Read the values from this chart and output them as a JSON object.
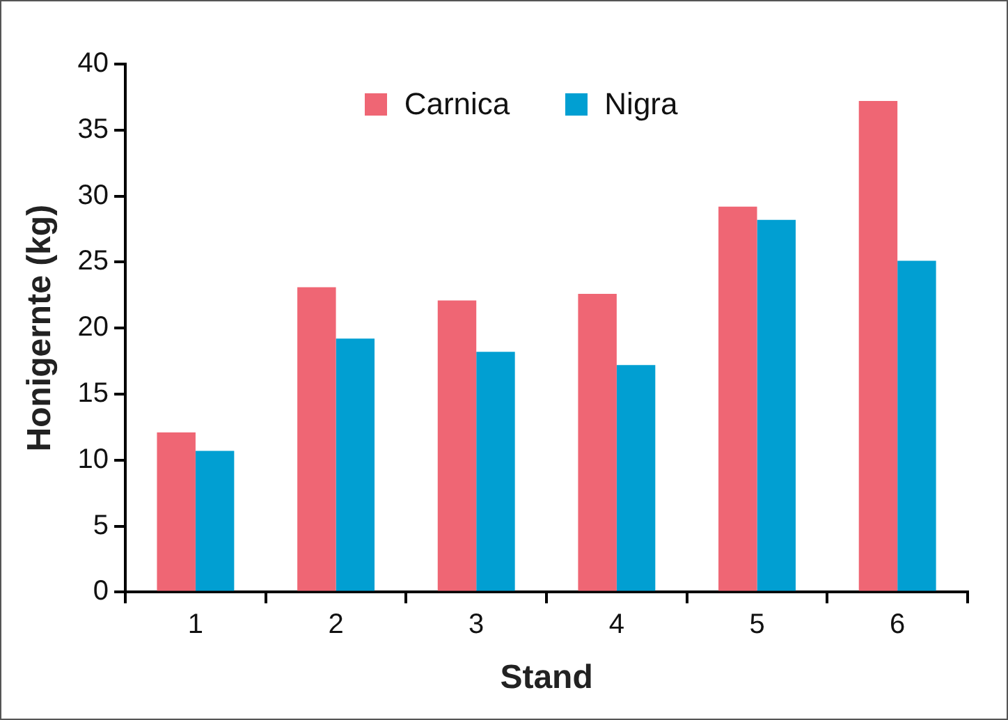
{
  "chart_data": {
    "type": "bar",
    "xlabel": "Stand",
    "ylabel": "Honigernte (kg)",
    "categories": [
      "1",
      "2",
      "3",
      "4",
      "5",
      "6"
    ],
    "series": [
      {
        "name": "Carnica",
        "color": "#ef6674",
        "values": [
          12.1,
          23.1,
          22.1,
          22.6,
          29.2,
          37.2
        ]
      },
      {
        "name": "Nigra",
        "color": "#019fd2",
        "values": [
          10.7,
          19.2,
          18.2,
          17.2,
          28.2,
          25.1
        ]
      }
    ],
    "ylim": [
      0,
      40
    ],
    "yticks": [
      0,
      5,
      10,
      15,
      20,
      25,
      30,
      35,
      40
    ],
    "grid": false,
    "legend": "top"
  }
}
